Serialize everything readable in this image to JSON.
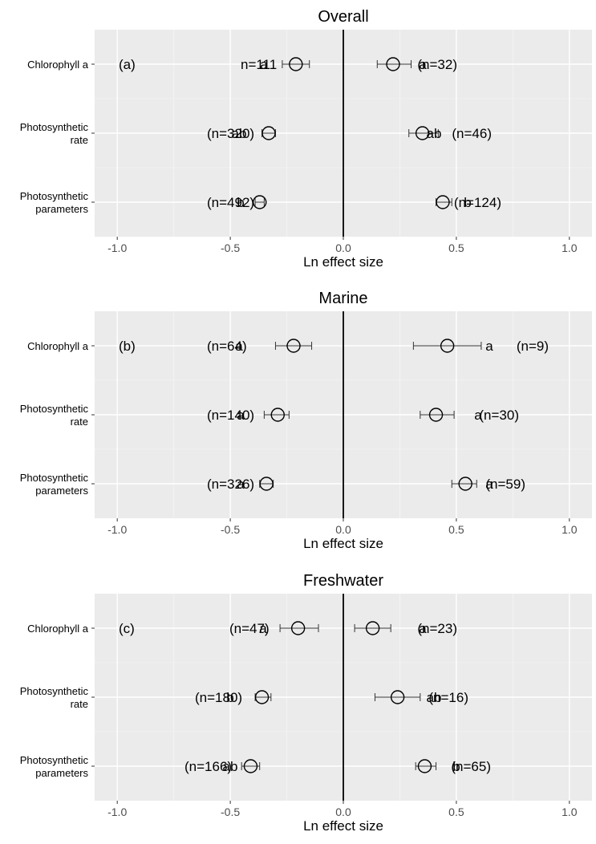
{
  "chart_data": [
    {
      "type": "scatter",
      "title": "Overall",
      "panel_label": "(a)",
      "xlabel": "Ln effect size",
      "xlim": [
        -1.1,
        1.1
      ],
      "xticks": [
        "-1.0",
        "-0.5",
        "0.0",
        "0.5",
        "1.0"
      ],
      "categories": [
        "Chlorophyll a",
        "Photosynthetic rate",
        "Photosynthetic parameters"
      ],
      "points": [
        {
          "category": "Chlorophyll a",
          "side": "negative",
          "value": -0.21,
          "ci": [
            -0.27,
            -0.15
          ],
          "n_label": "n=111",
          "letter": "a"
        },
        {
          "category": "Chlorophyll a",
          "side": "positive",
          "value": 0.22,
          "ci": [
            0.15,
            0.3
          ],
          "n_label": "(n=32)",
          "letter": "a"
        },
        {
          "category": "Photosynthetic rate",
          "side": "negative",
          "value": -0.33,
          "ci": [
            -0.36,
            -0.3
          ],
          "n_label": "(n=320)",
          "letter": "ab"
        },
        {
          "category": "Photosynthetic rate",
          "side": "positive",
          "value": 0.35,
          "ci": [
            0.29,
            0.42
          ],
          "n_label": "(n=46)",
          "letter": "ab"
        },
        {
          "category": "Photosynthetic parameters",
          "side": "negative",
          "value": -0.37,
          "ci": [
            -0.39,
            -0.35
          ],
          "n_label": "(n=492)",
          "letter": "b"
        },
        {
          "category": "Photosynthetic parameters",
          "side": "positive",
          "value": 0.44,
          "ci": [
            0.41,
            0.48
          ],
          "n_label": "(n=124)",
          "letter": "b"
        }
      ]
    },
    {
      "type": "scatter",
      "title": "Marine",
      "panel_label": "(b)",
      "xlabel": "Ln effect size",
      "xlim": [
        -1.1,
        1.1
      ],
      "xticks": [
        "-1.0",
        "-0.5",
        "0.0",
        "0.5",
        "1.0"
      ],
      "categories": [
        "Chlorophyll a",
        "Photosynthetic rate",
        "Photosynthetic parameters"
      ],
      "points": [
        {
          "category": "Chlorophyll a",
          "side": "negative",
          "value": -0.22,
          "ci": [
            -0.3,
            -0.14
          ],
          "n_label": "(n=64)",
          "letter": "a"
        },
        {
          "category": "Chlorophyll a",
          "side": "positive",
          "value": 0.46,
          "ci": [
            0.31,
            0.61
          ],
          "n_label": "(n=9)",
          "letter": "a"
        },
        {
          "category": "Photosynthetic rate",
          "side": "negative",
          "value": -0.29,
          "ci": [
            -0.35,
            -0.24
          ],
          "n_label": "(n=140)",
          "letter": "a"
        },
        {
          "category": "Photosynthetic rate",
          "side": "positive",
          "value": 0.41,
          "ci": [
            0.34,
            0.49
          ],
          "n_label": "(n=30)",
          "letter": "a"
        },
        {
          "category": "Photosynthetic parameters",
          "side": "negative",
          "value": -0.34,
          "ci": [
            -0.37,
            -0.31
          ],
          "n_label": "(n=326)",
          "letter": "a"
        },
        {
          "category": "Photosynthetic parameters",
          "side": "positive",
          "value": 0.54,
          "ci": [
            0.48,
            0.59
          ],
          "n_label": "(n=59)",
          "letter": "a"
        }
      ]
    },
    {
      "type": "scatter",
      "title": "Freshwater",
      "panel_label": "(c)",
      "xlabel": "Ln effect size",
      "xlim": [
        -1.1,
        1.1
      ],
      "xticks": [
        "-1.0",
        "-0.5",
        "0.0",
        "0.5",
        "1.0"
      ],
      "categories": [
        "Chlorophyll a",
        "Photosynthetic rate",
        "Photosynthetic parameters"
      ],
      "points": [
        {
          "category": "Chlorophyll a",
          "side": "negative",
          "value": -0.2,
          "ci": [
            -0.28,
            -0.11
          ],
          "n_label": "(n=47)",
          "letter": "a"
        },
        {
          "category": "Chlorophyll a",
          "side": "positive",
          "value": 0.13,
          "ci": [
            0.05,
            0.21
          ],
          "n_label": "(n=23)",
          "letter": "a"
        },
        {
          "category": "Photosynthetic rate",
          "side": "negative",
          "value": -0.36,
          "ci": [
            -0.39,
            -0.32
          ],
          "n_label": "(n=180)",
          "letter": "b"
        },
        {
          "category": "Photosynthetic rate",
          "side": "positive",
          "value": 0.24,
          "ci": [
            0.14,
            0.34
          ],
          "n_label": "(n=16)",
          "letter": "ab"
        },
        {
          "category": "Photosynthetic parameters",
          "side": "negative",
          "value": -0.41,
          "ci": [
            -0.45,
            -0.37
          ],
          "n_label": "(n=166)",
          "letter": "ab"
        },
        {
          "category": "Photosynthetic parameters",
          "side": "positive",
          "value": 0.36,
          "ci": [
            0.32,
            0.41
          ],
          "n_label": "(n=65)",
          "letter": "b"
        }
      ]
    }
  ]
}
